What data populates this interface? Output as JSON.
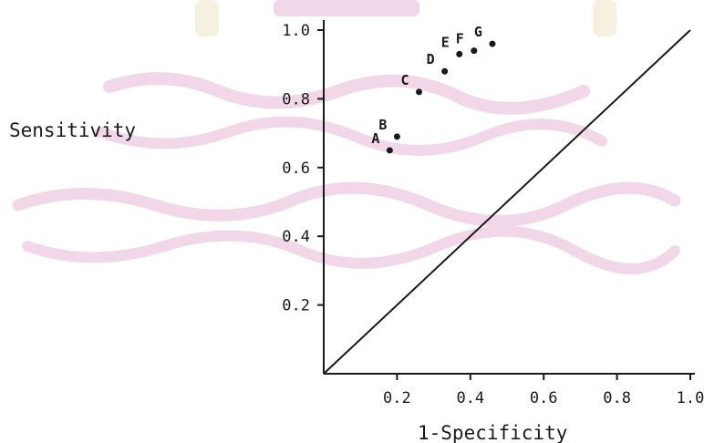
{
  "chart_data": {
    "type": "scatter",
    "xlabel": "1-Specificity",
    "ylabel": "Sensitivity",
    "xlim": [
      0,
      1.0
    ],
    "ylim": [
      0,
      1.0
    ],
    "x_ticks": [
      {
        "value": 0.2,
        "label": "0.2"
      },
      {
        "value": 0.4,
        "label": "0.4"
      },
      {
        "value": 0.6,
        "label": "0.6"
      },
      {
        "value": 0.8,
        "label": "0.8"
      },
      {
        "value": 1.0,
        "label": "1.0"
      }
    ],
    "y_ticks": [
      {
        "value": 0.2,
        "label": "0.2"
      },
      {
        "value": 0.4,
        "label": "0.4"
      },
      {
        "value": 0.6,
        "label": "0.6"
      },
      {
        "value": 0.8,
        "label": "0.8"
      },
      {
        "value": 1.0,
        "label": "1.0"
      }
    ],
    "points": [
      {
        "label": "A",
        "x": 0.18,
        "y": 0.65
      },
      {
        "label": "B",
        "x": 0.2,
        "y": 0.69
      },
      {
        "label": "C",
        "x": 0.26,
        "y": 0.82
      },
      {
        "label": "D",
        "x": 0.33,
        "y": 0.88
      },
      {
        "label": "E",
        "x": 0.37,
        "y": 0.93
      },
      {
        "label": "F",
        "x": 0.41,
        "y": 0.94
      },
      {
        "label": "G",
        "x": 0.46,
        "y": 0.96
      }
    ],
    "reference_line": {
      "from": [
        0,
        0
      ],
      "to": [
        1.0,
        1.0
      ]
    },
    "grid": false,
    "legend": "none"
  },
  "colors": {
    "ink": "#1a1a1a",
    "watermark": "#e8b8d8"
  }
}
